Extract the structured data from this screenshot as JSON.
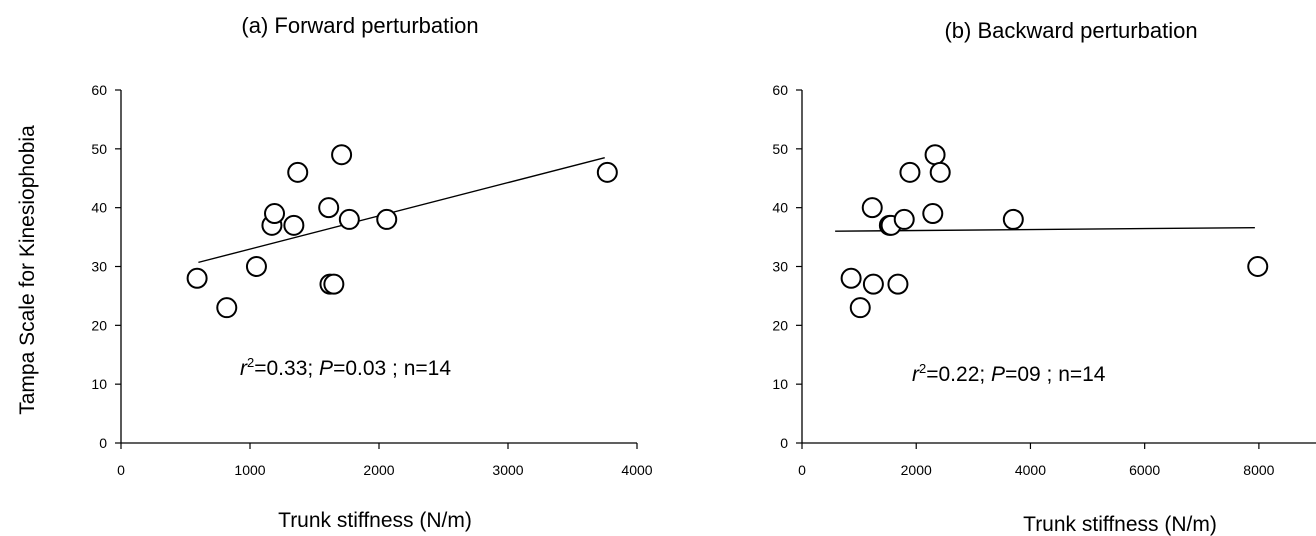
{
  "figure": {
    "ylabel": "Tampa Scale for Kinesiophobia",
    "marker": {
      "fill": "#ffffff",
      "stroke": "#000000"
    },
    "axis_color": "#000000"
  },
  "chart_data": [
    {
      "type": "scatter",
      "title": "(a) Forward perturbation",
      "xlabel": "Trunk stiffness (N/m)",
      "ylabel": "Tampa Scale for Kinesiophobia",
      "xlim": [
        0,
        4000
      ],
      "ylim": [
        0,
        60
      ],
      "xticks": [
        0,
        1000,
        2000,
        3000,
        4000
      ],
      "yticks": [
        0,
        10,
        20,
        30,
        40,
        50,
        60
      ],
      "grid": false,
      "points": [
        {
          "x": 590,
          "y": 28
        },
        {
          "x": 820,
          "y": 23
        },
        {
          "x": 1050,
          "y": 30
        },
        {
          "x": 1170,
          "y": 37
        },
        {
          "x": 1190,
          "y": 39
        },
        {
          "x": 1340,
          "y": 37
        },
        {
          "x": 1370,
          "y": 46
        },
        {
          "x": 1610,
          "y": 40
        },
        {
          "x": 1620,
          "y": 27
        },
        {
          "x": 1650,
          "y": 27
        },
        {
          "x": 1710,
          "y": 49
        },
        {
          "x": 1770,
          "y": 38
        },
        {
          "x": 2060,
          "y": 38
        },
        {
          "x": 3770,
          "y": 46
        }
      ],
      "trendline": {
        "x": [
          600,
          3750
        ],
        "y": [
          30.7,
          48.5
        ]
      },
      "annotation": {
        "r_symbol": "r",
        "superscript": "2",
        "rest_a": "=0.33; ",
        "p_symbol": "P",
        "rest_b": "=0.03 ; n=14"
      }
    },
    {
      "type": "scatter",
      "title": "(b) Backward perturbation",
      "xlabel": "Trunk stiffness (N/m)",
      "xlim": [
        0,
        9000
      ],
      "ylim": [
        0,
        60
      ],
      "xticks": [
        0,
        2000,
        4000,
        6000,
        8000
      ],
      "yticks": [
        0,
        10,
        20,
        30,
        40,
        50,
        60
      ],
      "grid": false,
      "points": [
        {
          "x": 860,
          "y": 28
        },
        {
          "x": 1020,
          "y": 23
        },
        {
          "x": 1230,
          "y": 40
        },
        {
          "x": 1250,
          "y": 27
        },
        {
          "x": 1530,
          "y": 37
        },
        {
          "x": 1560,
          "y": 37
        },
        {
          "x": 1680,
          "y": 27
        },
        {
          "x": 1790,
          "y": 38
        },
        {
          "x": 1890,
          "y": 46
        },
        {
          "x": 2290,
          "y": 39
        },
        {
          "x": 2330,
          "y": 49
        },
        {
          "x": 2420,
          "y": 46
        },
        {
          "x": 3700,
          "y": 38
        },
        {
          "x": 7980,
          "y": 30
        }
      ],
      "trendline": {
        "x": [
          580,
          7930
        ],
        "y": [
          36.0,
          36.6
        ]
      },
      "annotation": {
        "r_symbol": "r",
        "superscript": "2",
        "rest_a": "=0.22; ",
        "p_symbol": "P",
        "rest_b": "=09 ; n=14"
      }
    }
  ]
}
